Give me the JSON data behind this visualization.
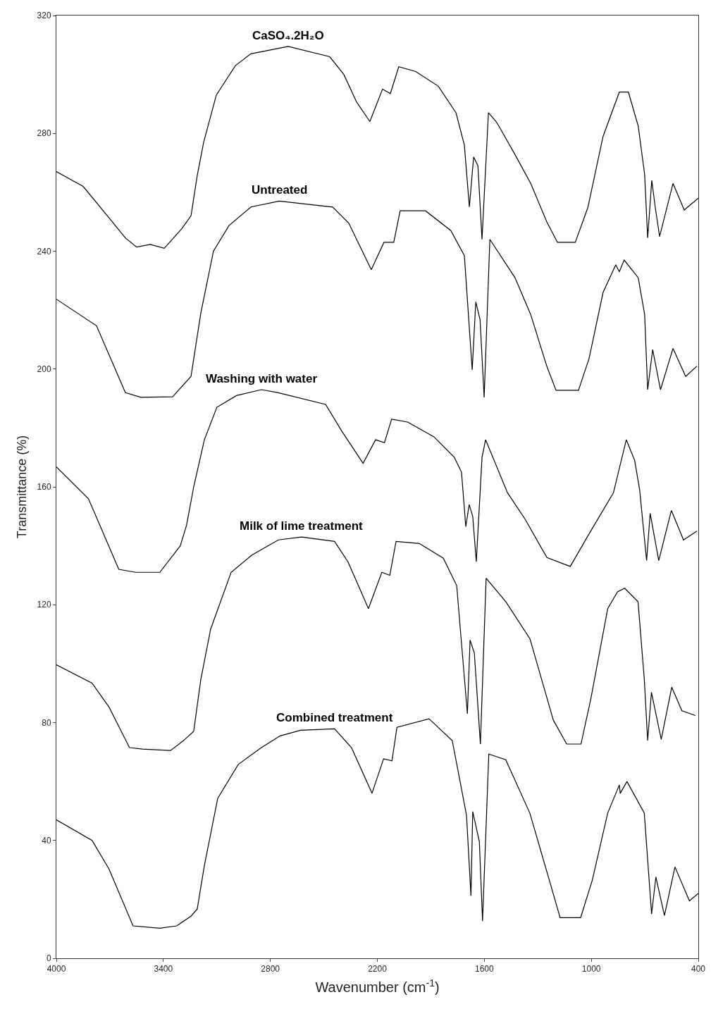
{
  "chart_data": {
    "type": "line",
    "xlabel": "Wavenumber (cm$^{-1}$)",
    "ylabel": "Transmittance (%)",
    "xlim": [
      4000,
      400
    ],
    "xticks": [
      4000,
      3400,
      2800,
      2200,
      1600,
      1000,
      400
    ],
    "ylim": [
      0,
      320
    ],
    "yticks": [
      0,
      40,
      80,
      120,
      160,
      200,
      240,
      280,
      320
    ],
    "grid": false,
    "legend": false,
    "marker": "none",
    "line_style": "solid",
    "series": [
      {
        "name": "CaSO₄.2H₂O",
        "color": "#000000",
        "x": [
          4000,
          3850,
          3700,
          3613,
          3550,
          3474,
          3395,
          3297,
          3245,
          3210,
          3174,
          3103,
          2996,
          2909,
          2700,
          2467,
          2388,
          2317,
          2242,
          2171,
          2127,
          2080,
          1985,
          1858,
          1759,
          1712,
          1684,
          1660,
          1636,
          1613,
          1577,
          1534,
          1519,
          1428,
          1340,
          1250,
          1190,
          1090,
          1020,
          934,
          843,
          792,
          737,
          701,
          684,
          661,
          641,
          617,
          542,
          479,
          420,
          400
        ],
        "values": [
          267,
          262,
          251,
          244.5,
          241.4,
          242.3,
          241,
          247.6,
          252,
          265.7,
          277,
          293,
          303,
          307,
          309.5,
          306,
          300,
          290.7,
          284,
          295,
          293.5,
          302.6,
          301,
          296,
          287,
          276,
          255,
          272,
          269,
          244,
          287,
          284,
          282.5,
          272.8,
          263,
          250,
          243,
          243,
          254.7,
          279,
          294,
          294,
          282.5,
          266,
          244.5,
          264,
          254.7,
          245,
          263,
          254,
          257,
          258
        ]
      },
      {
        "name": "Untreated",
        "color": "#000000",
        "x": [
          4000,
          3775,
          3613,
          3526,
          3348,
          3245,
          3190,
          3119,
          3032,
          2909,
          2750,
          2451,
          2360,
          2234,
          2163,
          2108,
          2072,
          1930,
          1788,
          1712,
          1668,
          1648,
          1624,
          1601,
          1569,
          1428,
          1340,
          1250,
          1198,
          1072,
          1013,
          934,
          863,
          843,
          816,
          737,
          701,
          684,
          656,
          612,
          542,
          471,
          408
        ],
        "values": [
          223.7,
          214.7,
          192,
          190.4,
          190.6,
          197.5,
          219,
          240,
          248.7,
          255,
          257,
          255,
          249.5,
          233.7,
          243,
          243,
          253.7,
          253.7,
          247,
          238.5,
          199.7,
          222.8,
          216.8,
          190.4,
          244,
          231,
          218.5,
          201,
          192.8,
          192.8,
          203.5,
          226,
          235.4,
          233,
          237,
          231,
          218.5,
          193,
          206.6,
          193,
          207,
          197.5,
          201
        ]
      },
      {
        "name": "Washing with water",
        "color": "#000000",
        "x": [
          4000,
          3820,
          3650,
          3555,
          3420,
          3305,
          3270,
          3230,
          3170,
          3100,
          2990,
          2850,
          2760,
          2490,
          2400,
          2280,
          2210,
          2160,
          2120,
          2030,
          1883,
          1768,
          1728,
          1704,
          1685,
          1665,
          1645,
          1613,
          1593,
          1470,
          1371,
          1249,
          1118,
          1023,
          876,
          804,
          757,
          729,
          690,
          670,
          622,
          551,
          483,
          408
        ],
        "values": [
          166.8,
          156,
          132,
          131,
          131,
          140,
          147,
          160,
          176,
          187,
          191,
          193,
          192,
          188,
          179,
          168,
          176,
          175,
          183,
          182,
          177,
          170,
          165,
          146.5,
          154,
          150,
          134.6,
          170,
          176,
          158,
          149,
          136,
          133,
          143,
          158,
          176,
          169,
          159,
          135,
          151,
          135,
          152,
          142,
          145
        ]
      },
      {
        "name": "Milk of lime treatment",
        "color": "#000000",
        "x": [
          4000,
          3800,
          3705,
          3590,
          3517,
          3360,
          3285,
          3230,
          3190,
          3135,
          3020,
          2905,
          2755,
          2625,
          2440,
          2365,
          2250,
          2175,
          2130,
          2095,
          1965,
          1830,
          1755,
          1695,
          1680,
          1656,
          1622,
          1590,
          1479,
          1344,
          1213,
          1138,
          1058,
          1003,
          908,
          853,
          813,
          738,
          703,
          684,
          663,
          608,
          549,
          492,
          416
        ],
        "values": [
          99.6,
          93.4,
          85.3,
          71.5,
          71,
          70.5,
          74,
          77,
          94.6,
          111.7,
          131,
          136.8,
          142,
          143,
          141.5,
          134.6,
          118.7,
          131,
          130,
          141.5,
          140.8,
          135.8,
          126.5,
          83,
          108,
          103.6,
          72.7,
          129,
          121,
          108.4,
          80.8,
          72.7,
          72.7,
          88,
          118.7,
          124.4,
          125.6,
          121,
          94.8,
          73.9,
          90.3,
          74.3,
          92,
          84,
          82.4
        ]
      },
      {
        "name": "Combined treatment",
        "color": "#000000",
        "x": [
          4000,
          3800,
          3705,
          3570,
          3420,
          3325,
          3245,
          3210,
          3170,
          3095,
          2980,
          2850,
          2745,
          2630,
          2440,
          2345,
          2230,
          2165,
          2118,
          2090,
          1910,
          1780,
          1700,
          1675,
          1665,
          1628,
          1610,
          1575,
          1480,
          1345,
          1235,
          1175,
          1060,
          995,
          908,
          843,
          838,
          800,
          703,
          662,
          638,
          590,
          531,
          450,
          400
        ],
        "values": [
          47,
          40,
          30.3,
          11,
          10.2,
          11,
          14.3,
          16.7,
          31.5,
          54.3,
          65.8,
          71.5,
          75.5,
          77.4,
          77.9,
          71.5,
          56,
          67.7,
          67,
          78.4,
          81.3,
          73.9,
          48.6,
          21.2,
          49.8,
          39.6,
          12.6,
          69.3,
          67.4,
          49.3,
          26.4,
          13.8,
          13.8,
          26.4,
          49.3,
          58.8,
          56,
          60,
          49.3,
          15,
          27.6,
          14.5,
          31,
          19.5,
          22
        ]
      }
    ]
  }
}
